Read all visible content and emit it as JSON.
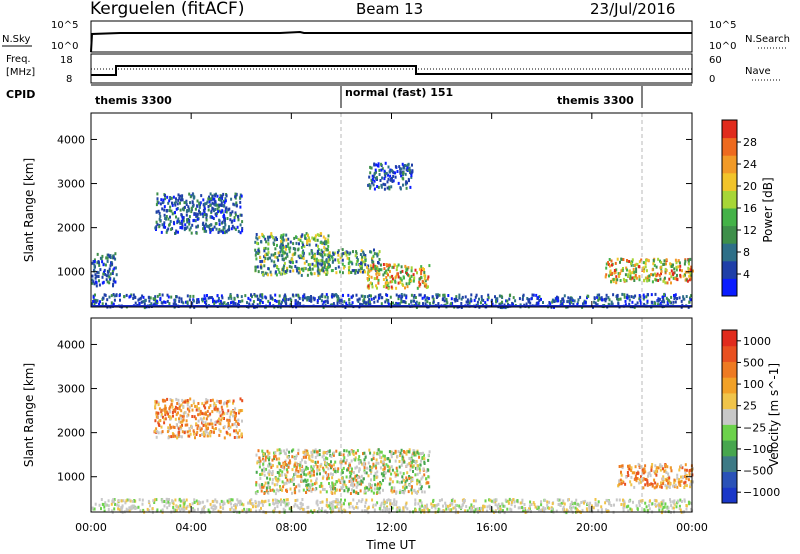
{
  "header": {
    "station": "Kerguelen (fitACF)",
    "beam": "Beam 13",
    "date": "23/Jul/2016"
  },
  "strips": {
    "nsky": {
      "label": "N.Sky",
      "right_label": "N.Search",
      "left_ticks": [
        "10^5",
        "10^0"
      ],
      "right_ticks": [
        "10^5",
        "10^0"
      ]
    },
    "freq": {
      "label_line1": "Freq.",
      "label_line2": "[MHz]",
      "right_label": "Nave",
      "left_ticks": [
        "18",
        "8"
      ],
      "right_ticks": [
        "60",
        "0"
      ]
    },
    "cpid": {
      "label": "CPID",
      "segments": [
        "themis 3300",
        "normal (fast) 151",
        "themis 3300"
      ]
    }
  },
  "chart_data": [
    {
      "type": "heatmap",
      "panel": "power",
      "ylabel": "Slant Range [km]",
      "yticks": [
        "1000",
        "2000",
        "3000",
        "4000"
      ],
      "ylim": [
        200,
        4600
      ],
      "xlim_hours": [
        0,
        24
      ],
      "xticks": [
        "00:00",
        "04:00",
        "08:00",
        "12:00",
        "16:00",
        "20:00",
        "00:00"
      ],
      "colorbar": {
        "label": "Power [dB]",
        "ticks": [
          "4",
          "8",
          "12",
          "16",
          "20",
          "24",
          "28"
        ],
        "colors": [
          "#0a1cff",
          "#1f3fa8",
          "#2e6f88",
          "#3e8f4a",
          "#44b248",
          "#a7d637",
          "#f2c42a",
          "#f29a27",
          "#ee6a1f",
          "#e02b1d"
        ]
      },
      "scatter_regions": [
        {
          "t": [
            0.0,
            24.0
          ],
          "r": [
            220,
            520
          ],
          "level": "low"
        },
        {
          "t": [
            0.0,
            1.0
          ],
          "r": [
            700,
            1450
          ],
          "level": "low"
        },
        {
          "t": [
            2.5,
            6.0
          ],
          "r": [
            1900,
            2800
          ],
          "level": "low"
        },
        {
          "t": [
            6.5,
            9.5
          ],
          "r": [
            950,
            1900
          ],
          "level": "mixed"
        },
        {
          "t": [
            9.0,
            11.5
          ],
          "r": [
            1000,
            1550
          ],
          "level": "mixed"
        },
        {
          "t": [
            11.0,
            13.5
          ],
          "r": [
            650,
            1200
          ],
          "level": "high"
        },
        {
          "t": [
            11.0,
            12.8
          ],
          "r": [
            2900,
            3500
          ],
          "level": "low"
        },
        {
          "t": [
            20.5,
            24.0
          ],
          "r": [
            780,
            1320
          ],
          "level": "high"
        }
      ]
    },
    {
      "type": "heatmap",
      "panel": "velocity",
      "ylabel": "Slant Range [km]",
      "yticks": [
        "1000",
        "2000",
        "3000",
        "4000"
      ],
      "ylim": [
        200,
        4600
      ],
      "xlim_hours": [
        0,
        24
      ],
      "xticks": [
        "00:00",
        "04:00",
        "08:00",
        "12:00",
        "16:00",
        "20:00",
        "00:00"
      ],
      "xlabel": "Time UT",
      "colorbar": {
        "label": "Velocity [m s^-1]",
        "ticks": [
          "1000",
          "500",
          "100",
          "25",
          "−25",
          "−100",
          "−500",
          "−1000"
        ],
        "colors": [
          "#1a37c8",
          "#2a52b8",
          "#3d7a86",
          "#47a64e",
          "#6cd24b",
          "#c8c8c8",
          "#f0c44a",
          "#f2a127",
          "#ee7a22",
          "#e85020",
          "#e02b1d"
        ]
      },
      "scatter_regions": [
        {
          "t": [
            0.0,
            24.0
          ],
          "r": [
            220,
            520
          ],
          "level": "grey"
        },
        {
          "t": [
            2.5,
            6.0
          ],
          "r": [
            1900,
            2800
          ],
          "level": "orange"
        },
        {
          "t": [
            6.5,
            13.5
          ],
          "r": [
            650,
            1650
          ],
          "level": "grey-green"
        },
        {
          "t": [
            21.0,
            24.0
          ],
          "r": [
            780,
            1320
          ],
          "level": "orange"
        }
      ]
    }
  ]
}
